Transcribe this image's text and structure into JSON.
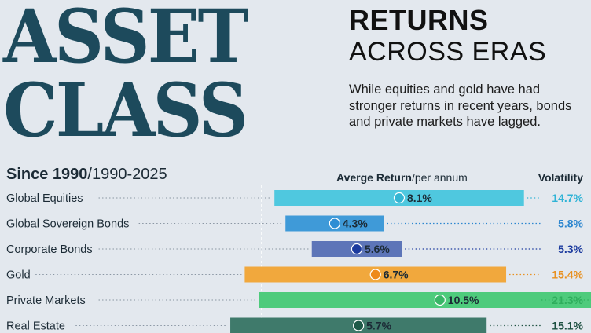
{
  "title": {
    "line1": "ASSET",
    "line2": "CLASS",
    "subtitle_strong": "RETURNS",
    "subtitle_light": "ACROSS ERAS"
  },
  "description": "While equities and gold have had stronger returns in recent years, bonds and private markets have lagged.",
  "headers": {
    "since_label": "Since 1990",
    "since_range": "/1990-2025",
    "return_label": "Averge Return",
    "return_unit": "/per annum",
    "volatility_label": "Volatility"
  },
  "chart_data": {
    "type": "bar",
    "categories": [
      "Global Equities",
      "Global Sovereign Bonds",
      "Corporate Bonds",
      "Gold",
      "Private Markets",
      "Real Estate"
    ],
    "average_return": [
      8.1,
      4.3,
      5.6,
      6.7,
      10.5,
      5.7
    ],
    "average_return_labels": [
      "8.1%",
      "4.3%",
      "5.6%",
      "6.7%",
      "10.5%",
      "5.7%"
    ],
    "volatility": [
      14.7,
      5.8,
      5.3,
      15.4,
      21.3,
      15.1
    ],
    "volatility_labels": [
      "14.7%",
      "5.8%",
      "5.3%",
      "15.4%",
      "21.3%",
      "15.1%"
    ],
    "colors": [
      "#4fc8df",
      "#3f9ad8",
      "#5d75b8",
      "#f1a83d",
      "#4ecb7c",
      "#3f7a6b"
    ],
    "dot_colors": [
      "#34b5d3",
      "#2f8ed4",
      "#1b3a9e",
      "#ee8a1b",
      "#38b667",
      "#1e5a48"
    ],
    "volatility_colors": [
      "#2fb3d6",
      "#2c86cf",
      "#1b3a9e",
      "#e8901f",
      "#2fae5d",
      "#1c4f40"
    ]
  }
}
